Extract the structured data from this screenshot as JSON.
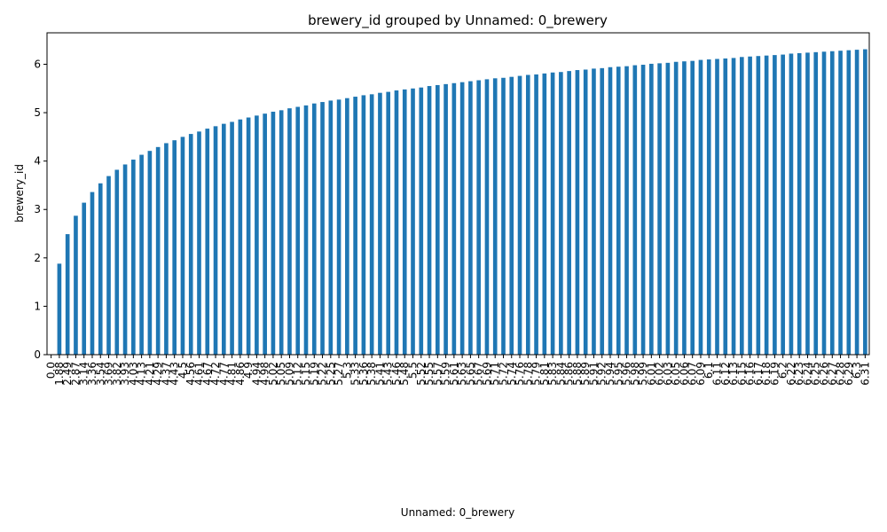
{
  "chart_data": {
    "type": "bar",
    "title": "brewery_id grouped by Unnamed: 0_brewery",
    "x_label": "Unnamed: 0_brewery",
    "y_label": "brewery_id",
    "color": "#1f77b4",
    "categories": [
      "0.0",
      "1.88",
      "2.49",
      "2.87",
      "3.14",
      "3.36",
      "3.54",
      "3.69",
      "3.82",
      "3.93",
      "4.03",
      "4.13",
      "4.21",
      "4.29",
      "4.37",
      "4.43",
      "4.5",
      "4.56",
      "4.61",
      "4.67",
      "4.72",
      "4.77",
      "4.81",
      "4.86",
      "4.9",
      "4.94",
      "4.98",
      "5.02",
      "5.05",
      "5.09",
      "5.12",
      "5.15",
      "5.19",
      "5.22",
      "5.25",
      "5.27",
      "5.3",
      "5.33",
      "5.36",
      "5.38",
      "5.41",
      "5.43",
      "5.46",
      "5.48",
      "5.5",
      "5.52",
      "5.55",
      "5.57",
      "5.59",
      "5.61",
      "5.63",
      "5.65",
      "5.67",
      "5.69",
      "5.71",
      "5.72",
      "5.74",
      "5.76",
      "5.78",
      "5.79",
      "5.81",
      "5.83",
      "5.84",
      "5.86",
      "5.88",
      "5.89",
      "5.91",
      "5.92",
      "5.94",
      "5.95",
      "5.96",
      "5.98",
      "5.99",
      "6.01",
      "6.02",
      "6.03",
      "6.05",
      "6.06",
      "6.07",
      "6.09",
      "6.1",
      "6.11",
      "6.12",
      "6.13",
      "6.15",
      "6.16",
      "6.17",
      "6.18",
      "6.19",
      "6.2",
      "6.22",
      "6.23",
      "6.24",
      "6.25",
      "6.26",
      "6.27",
      "6.28",
      "6.29",
      "6.3",
      "6.31"
    ],
    "values": [
      0,
      1.88,
      2.49,
      2.87,
      3.14,
      3.36,
      3.54,
      3.69,
      3.82,
      3.93,
      4.03,
      4.13,
      4.21,
      4.29,
      4.37,
      4.43,
      4.5,
      4.56,
      4.61,
      4.67,
      4.72,
      4.77,
      4.81,
      4.86,
      4.9,
      4.94,
      4.98,
      5.02,
      5.05,
      5.09,
      5.12,
      5.15,
      5.19,
      5.22,
      5.25,
      5.27,
      5.3,
      5.33,
      5.36,
      5.38,
      5.41,
      5.43,
      5.46,
      5.48,
      5.5,
      5.52,
      5.55,
      5.57,
      5.59,
      5.61,
      5.63,
      5.65,
      5.67,
      5.69,
      5.71,
      5.72,
      5.74,
      5.76,
      5.78,
      5.79,
      5.81,
      5.83,
      5.84,
      5.86,
      5.88,
      5.89,
      5.91,
      5.92,
      5.94,
      5.95,
      5.96,
      5.98,
      5.99,
      6.01,
      6.02,
      6.03,
      6.05,
      6.06,
      6.07,
      6.09,
      6.1,
      6.11,
      6.12,
      6.13,
      6.15,
      6.16,
      6.17,
      6.18,
      6.19,
      6.2,
      6.22,
      6.23,
      6.24,
      6.25,
      6.26,
      6.27,
      6.28,
      6.29,
      6.3,
      6.31
    ],
    "ylim": [
      0,
      6.65
    ],
    "yticks": [
      0,
      1,
      2,
      3,
      4,
      5,
      6
    ]
  }
}
